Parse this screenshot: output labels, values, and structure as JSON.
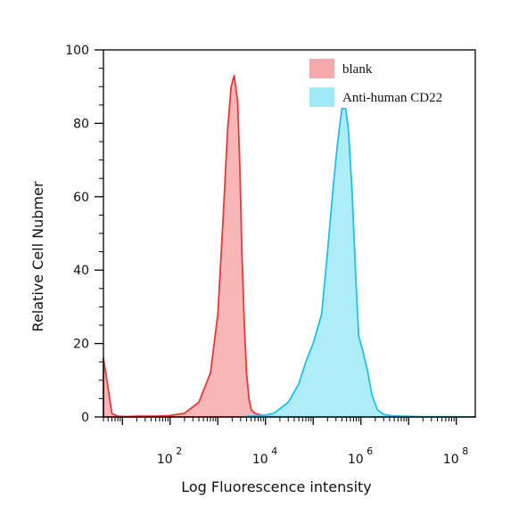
{
  "chart_data": {
    "type": "area",
    "title": "",
    "xlabel": "Log Fluorescence intensity",
    "ylabel": "Relative Cell Nubmer",
    "x_scale": "log10",
    "xlim": [
      4,
      250000000
    ],
    "ylim": [
      0,
      100
    ],
    "y_ticks": [
      0,
      20,
      40,
      60,
      80,
      100
    ],
    "x_ticks": [
      {
        "base": "10",
        "exp": "2",
        "value": 100
      },
      {
        "base": "10",
        "exp": "4",
        "value": 10000
      },
      {
        "base": "10",
        "exp": "6",
        "value": 1000000
      },
      {
        "base": "10",
        "exp": "8",
        "value": 100000000
      }
    ],
    "grid": false,
    "legend_position": "top-right",
    "series": [
      {
        "name": "blank",
        "fill": "#f7a9a9",
        "stroke": "#e83a3a",
        "x": [
          4,
          5,
          6,
          8,
          12,
          20,
          50,
          100,
          200,
          400,
          700,
          1000,
          1300,
          1600,
          1900,
          2200,
          2600,
          2900,
          3200,
          3600,
          4000,
          4500,
          5000,
          6000,
          8000,
          10000,
          15000,
          30000,
          100000,
          250000000
        ],
        "y": [
          16,
          8,
          1,
          0.2,
          0.1,
          0.2,
          0.2,
          0.4,
          1,
          4,
          12,
          28,
          55,
          78,
          90,
          93,
          86,
          68,
          45,
          25,
          12,
          5,
          2,
          1,
          0.5,
          0.3,
          0.2,
          0.1,
          0,
          0
        ]
      },
      {
        "name": "Anti-human CD22",
        "fill": "#9feaf7",
        "stroke": "#22c0e8",
        "x": [
          3000,
          10000,
          15000,
          30000,
          50000,
          70000,
          100000,
          150000,
          200000,
          260000,
          320000,
          400000,
          480000,
          550000,
          650000,
          780000,
          900000,
          1100000,
          1400000,
          1700000,
          2200000,
          3000000,
          4500000,
          7000000,
          20000000,
          250000000
        ],
        "y": [
          0,
          0.5,
          1,
          4,
          9,
          15,
          20,
          28,
          45,
          62,
          74,
          84,
          84,
          78,
          62,
          38,
          22,
          18,
          12,
          6,
          2,
          0.7,
          0.3,
          0.2,
          0.1,
          0
        ]
      }
    ]
  }
}
